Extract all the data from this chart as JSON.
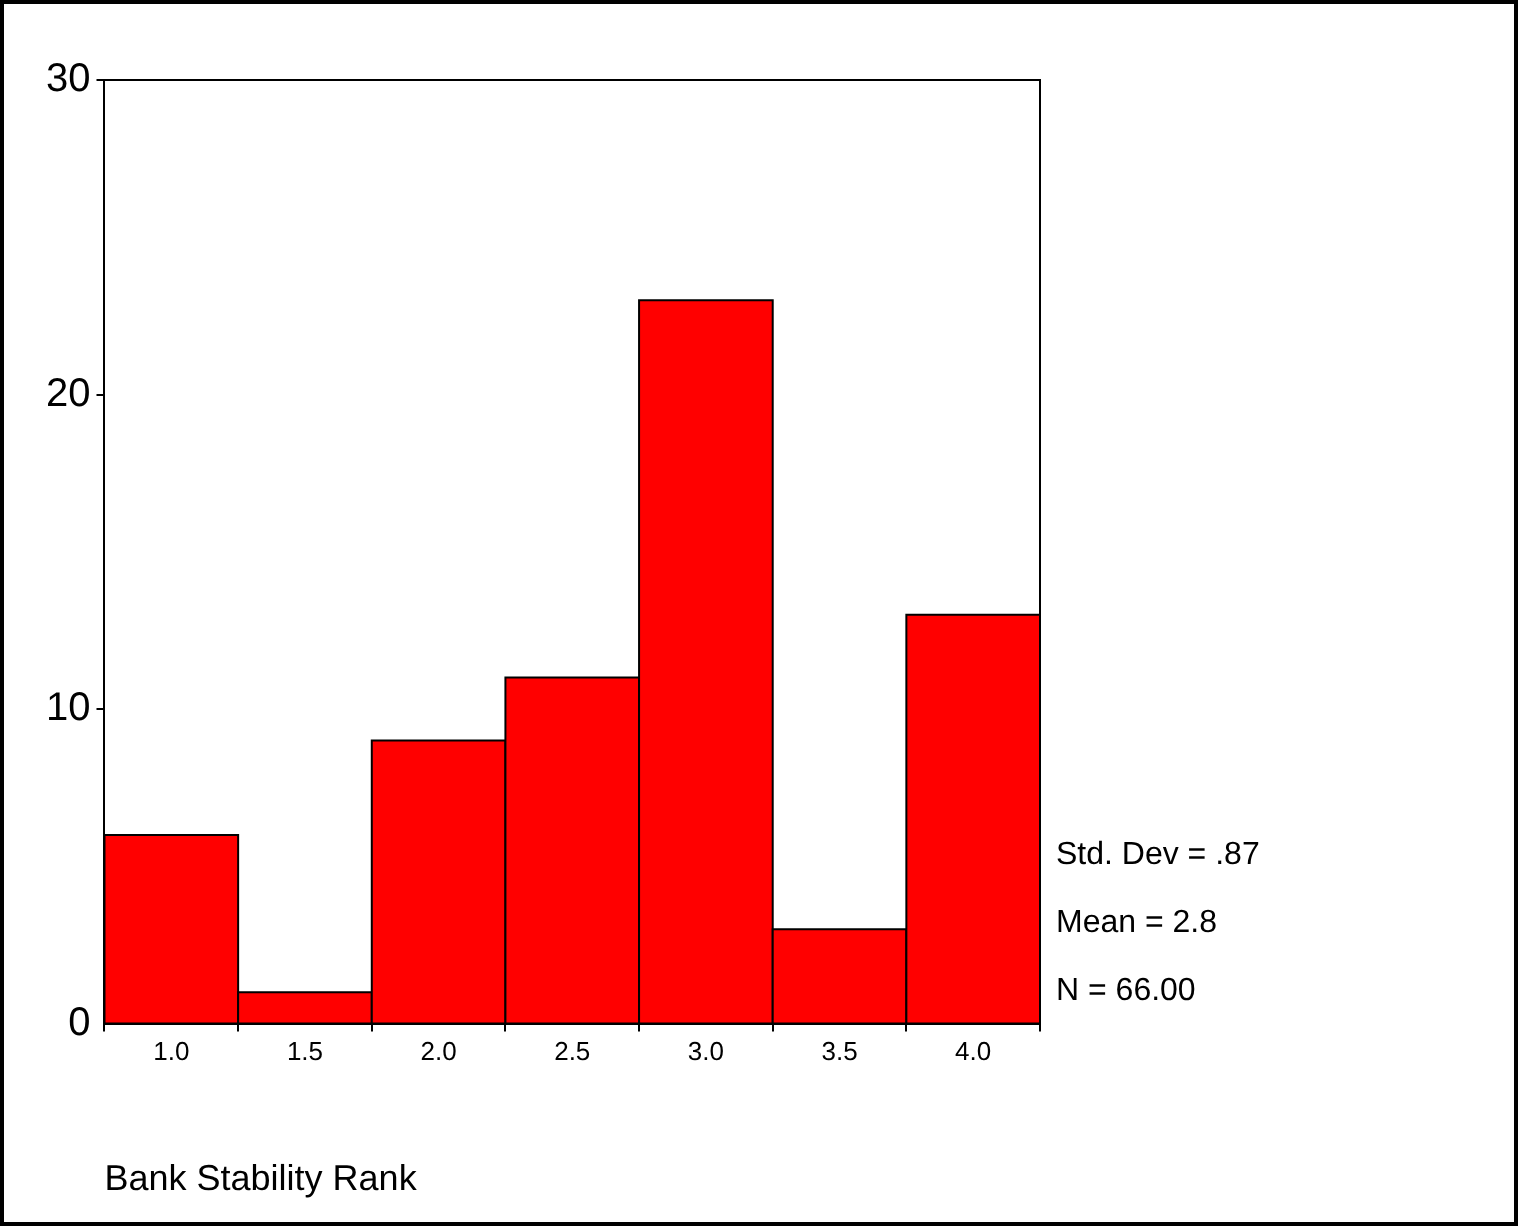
{
  "chart_data": {
    "type": "histogram",
    "xlabel": "Bank Stability Rank",
    "bins": [
      0.75,
      1.25,
      1.75,
      2.25,
      2.75,
      3.25,
      3.75,
      4.25
    ],
    "values": [
      6,
      1,
      9,
      11,
      23,
      3,
      13
    ],
    "color": "#ff0000",
    "xlim": [
      0.75,
      4.25
    ],
    "xticks": [
      {
        "value": 1,
        "label": "1.0"
      },
      {
        "value": 1.5,
        "label": "1.5"
      },
      {
        "value": 2,
        "label": "2.0"
      },
      {
        "value": 2.5,
        "label": "2.5"
      },
      {
        "value": 3,
        "label": "3.0"
      },
      {
        "value": 3.5,
        "label": "3.5"
      },
      {
        "value": 4,
        "label": "4.0"
      }
    ],
    "ylim": [
      0,
      30
    ],
    "yticks": [
      0,
      10,
      20,
      30
    ],
    "grid": false,
    "legend": false,
    "annotations": [
      "Std. Dev = .87",
      "Mean = 2.8",
      "N = 66.00"
    ]
  }
}
